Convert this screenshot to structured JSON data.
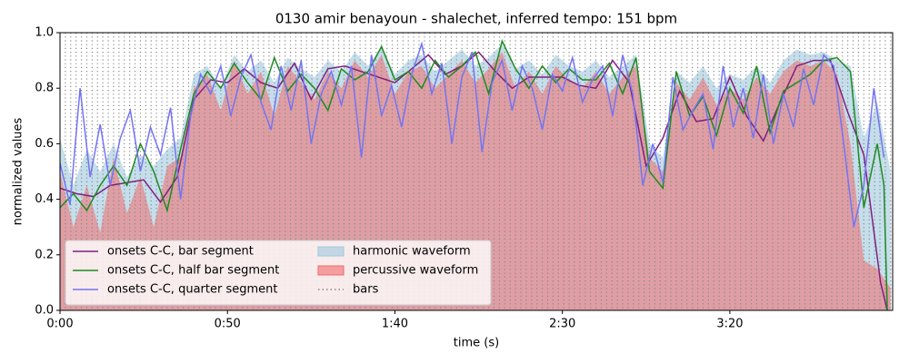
{
  "chart_data": {
    "type": "line",
    "title": "0130 amir benayoun - shalechet, inferred tempo: 151 bpm",
    "x_label": "time (s)",
    "y_label": "normalized values",
    "xlim": [
      0,
      248.6
    ],
    "ylim": [
      0,
      1
    ],
    "xticks": [
      {
        "value": 0,
        "label": "0:00"
      },
      {
        "value": 50,
        "label": "0:50"
      },
      {
        "value": 100,
        "label": "1:40"
      },
      {
        "value": 150,
        "label": "2:30"
      },
      {
        "value": 200,
        "label": "3:20"
      }
    ],
    "yticks": [
      {
        "value": 0,
        "label": "0.0"
      },
      {
        "value": 0.2,
        "label": "0.2"
      },
      {
        "value": 0.4,
        "label": "0.4"
      },
      {
        "value": 0.6,
        "label": "0.6"
      },
      {
        "value": 0.8,
        "label": "0.8"
      },
      {
        "value": 1,
        "label": "1.0"
      }
    ],
    "legend": "lower left",
    "series": [
      {
        "name": "onsets C-C, bar segment",
        "kind": "line",
        "color": "#7f1f7f",
        "x": [
          0,
          5,
          10,
          15,
          20,
          25,
          30,
          35,
          40,
          45,
          50,
          55,
          60,
          65,
          70,
          75,
          80,
          85,
          90,
          95,
          100,
          105,
          110,
          115,
          120,
          125,
          130,
          135,
          140,
          145,
          150,
          155,
          160,
          165,
          170,
          175,
          180,
          185,
          190,
          195,
          200,
          205,
          210,
          215,
          220,
          225,
          230,
          235,
          240,
          245,
          247
        ],
        "values": [
          0.44,
          0.42,
          0.41,
          0.45,
          0.46,
          0.47,
          0.39,
          0.48,
          0.76,
          0.83,
          0.82,
          0.87,
          0.82,
          0.8,
          0.89,
          0.76,
          0.87,
          0.88,
          0.86,
          0.84,
          0.82,
          0.87,
          0.92,
          0.85,
          0.88,
          0.93,
          0.86,
          0.8,
          0.84,
          0.84,
          0.84,
          0.81,
          0.8,
          0.9,
          0.82,
          0.52,
          0.62,
          0.79,
          0.68,
          0.69,
          0.84,
          0.7,
          0.61,
          0.75,
          0.88,
          0.9,
          0.9,
          0.72,
          0.56,
          0.1,
          0.0
        ]
      },
      {
        "name": "onsets C-C, half bar segment",
        "kind": "line",
        "color": "#1f8a1f",
        "x": [
          0,
          4,
          8,
          12,
          16,
          20,
          24,
          28,
          32,
          36,
          40,
          44,
          48,
          52,
          56,
          60,
          64,
          68,
          72,
          76,
          80,
          84,
          88,
          92,
          96,
          100,
          104,
          108,
          112,
          116,
          120,
          124,
          128,
          132,
          136,
          140,
          144,
          148,
          152,
          156,
          160,
          164,
          168,
          172,
          176,
          180,
          184,
          188,
          192,
          196,
          200,
          204,
          208,
          212,
          216,
          220,
          224,
          228,
          232,
          236,
          240,
          244,
          246,
          247
        ],
        "values": [
          0.37,
          0.42,
          0.36,
          0.45,
          0.52,
          0.45,
          0.6,
          0.5,
          0.36,
          0.58,
          0.78,
          0.86,
          0.8,
          0.89,
          0.82,
          0.76,
          0.91,
          0.79,
          0.85,
          0.8,
          0.72,
          0.87,
          0.83,
          0.86,
          0.95,
          0.83,
          0.86,
          0.8,
          0.9,
          0.84,
          0.88,
          0.93,
          0.78,
          0.97,
          0.87,
          0.8,
          0.88,
          0.82,
          0.87,
          0.83,
          0.83,
          0.89,
          0.78,
          0.91,
          0.5,
          0.44,
          0.86,
          0.7,
          0.77,
          0.63,
          0.8,
          0.71,
          0.88,
          0.64,
          0.79,
          0.82,
          0.85,
          0.9,
          0.91,
          0.86,
          0.37,
          0.6,
          0.45,
          0.0
        ]
      },
      {
        "name": "onsets C-C, quarter segment",
        "kind": "line",
        "color": "#7474f2",
        "x": [
          0,
          3,
          6,
          9,
          12,
          15,
          18,
          21,
          24,
          27,
          30,
          33,
          36,
          39,
          42,
          45,
          48,
          51,
          54,
          57,
          60,
          63,
          66,
          69,
          72,
          75,
          78,
          81,
          84,
          87,
          90,
          93,
          96,
          99,
          102,
          105,
          108,
          111,
          114,
          117,
          120,
          123,
          126,
          129,
          132,
          135,
          138,
          141,
          144,
          147,
          150,
          153,
          156,
          159,
          162,
          165,
          168,
          171,
          174,
          177,
          180,
          183,
          186,
          189,
          192,
          195,
          198,
          201,
          204,
          207,
          210,
          213,
          216,
          219,
          222,
          225,
          228,
          231,
          234,
          237,
          240,
          243,
          246
        ],
        "values": [
          0.53,
          0.38,
          0.8,
          0.48,
          0.67,
          0.45,
          0.62,
          0.72,
          0.5,
          0.66,
          0.56,
          0.73,
          0.4,
          0.7,
          0.85,
          0.78,
          0.88,
          0.7,
          0.84,
          0.92,
          0.75,
          0.65,
          0.88,
          0.72,
          0.9,
          0.6,
          0.78,
          0.86,
          0.74,
          0.88,
          0.55,
          0.92,
          0.7,
          0.81,
          0.66,
          0.85,
          0.96,
          0.78,
          0.89,
          0.6,
          0.84,
          0.93,
          0.57,
          0.82,
          0.9,
          0.72,
          0.88,
          0.8,
          0.65,
          0.85,
          0.79,
          0.91,
          0.75,
          0.83,
          0.88,
          0.7,
          0.92,
          0.78,
          0.45,
          0.6,
          0.46,
          0.84,
          0.65,
          0.72,
          0.78,
          0.58,
          0.88,
          0.66,
          0.8,
          0.62,
          0.85,
          0.6,
          0.78,
          0.66,
          0.87,
          0.74,
          0.92,
          0.88,
          0.6,
          0.3,
          0.45,
          0.8,
          0.55
        ]
      },
      {
        "name": "harmonic waveform",
        "kind": "area",
        "color": "#9ec8de",
        "x": [
          0,
          4,
          8,
          12,
          16,
          20,
          24,
          28,
          32,
          36,
          40,
          44,
          48,
          52,
          56,
          60,
          64,
          68,
          72,
          76,
          80,
          84,
          88,
          92,
          96,
          100,
          104,
          108,
          112,
          116,
          120,
          124,
          128,
          132,
          136,
          140,
          144,
          148,
          152,
          156,
          160,
          164,
          168,
          172,
          176,
          180,
          184,
          188,
          192,
          196,
          200,
          204,
          208,
          212,
          216,
          220,
          224,
          228,
          232,
          236,
          240,
          244,
          248
        ],
        "values": [
          0.62,
          0.45,
          0.58,
          0.5,
          0.6,
          0.48,
          0.56,
          0.52,
          0.58,
          0.62,
          0.85,
          0.88,
          0.8,
          0.92,
          0.86,
          0.9,
          0.82,
          0.91,
          0.87,
          0.84,
          0.9,
          0.86,
          0.93,
          0.88,
          0.95,
          0.85,
          0.9,
          0.92,
          0.86,
          0.9,
          0.94,
          0.88,
          0.91,
          0.96,
          0.87,
          0.9,
          0.85,
          0.92,
          0.88,
          0.86,
          0.9,
          0.84,
          0.88,
          0.92,
          0.6,
          0.55,
          0.86,
          0.82,
          0.88,
          0.8,
          0.85,
          0.83,
          0.88,
          0.82,
          0.9,
          0.94,
          0.92,
          0.93,
          0.9,
          0.88,
          0.62,
          0.75,
          0.5
        ]
      },
      {
        "name": "percussive waveform",
        "kind": "area",
        "color": "#f26a6a",
        "x": [
          0,
          4,
          8,
          12,
          16,
          20,
          24,
          28,
          32,
          36,
          40,
          44,
          48,
          52,
          56,
          60,
          64,
          68,
          72,
          76,
          80,
          84,
          88,
          92,
          96,
          100,
          104,
          108,
          112,
          116,
          120,
          124,
          128,
          132,
          136,
          140,
          144,
          148,
          152,
          156,
          160,
          164,
          168,
          172,
          176,
          180,
          184,
          188,
          192,
          196,
          200,
          204,
          208,
          212,
          216,
          220,
          224,
          228,
          232,
          236,
          240,
          244,
          248
        ],
        "values": [
          0.5,
          0.3,
          0.45,
          0.28,
          0.55,
          0.35,
          0.48,
          0.3,
          0.52,
          0.55,
          0.8,
          0.85,
          0.72,
          0.9,
          0.78,
          0.86,
          0.7,
          0.88,
          0.82,
          0.76,
          0.86,
          0.8,
          0.9,
          0.84,
          0.92,
          0.78,
          0.86,
          0.88,
          0.8,
          0.85,
          0.9,
          0.82,
          0.87,
          0.93,
          0.8,
          0.86,
          0.78,
          0.88,
          0.83,
          0.8,
          0.86,
          0.78,
          0.84,
          0.88,
          0.55,
          0.5,
          0.82,
          0.76,
          0.84,
          0.74,
          0.8,
          0.76,
          0.84,
          0.78,
          0.86,
          0.9,
          0.88,
          0.9,
          0.85,
          0.6,
          0.18,
          0.15,
          0.08
        ]
      },
      {
        "name": "bars",
        "kind": "vlines",
        "color": "#888888",
        "x": [
          0,
          1.6,
          3.2,
          4.8,
          6.4,
          8,
          9.6,
          11.2,
          12.8,
          14.4,
          16,
          17.6,
          19.2,
          20.8,
          22.4,
          24,
          25.6,
          27.2,
          28.8,
          30.4,
          32,
          33.6,
          35.2,
          36.8,
          38.4,
          40,
          41.6,
          43.2,
          44.8,
          46.4,
          48,
          49.6,
          51.2,
          52.8,
          54.4,
          56,
          57.6,
          59.2,
          60.8,
          62.4,
          64,
          65.6,
          67.2,
          68.8,
          70.4,
          72,
          73.6,
          75.2,
          76.8,
          78.4,
          80,
          81.6,
          83.2,
          84.8,
          86.4,
          88,
          89.6,
          91.2,
          92.8,
          94.4,
          96,
          97.6,
          99.2,
          100.8,
          102.4,
          104,
          105.6,
          107.2,
          108.8,
          110.4,
          112,
          113.6,
          115.2,
          116.8,
          118.4,
          120,
          121.6,
          123.2,
          124.8,
          126.4,
          128,
          129.6,
          131.2,
          132.8,
          134.4,
          136,
          137.6,
          139.2,
          140.8,
          142.4,
          144,
          145.6,
          147.2,
          148.8,
          150.4,
          152,
          153.6,
          155.2,
          156.8,
          158.4,
          160,
          161.6,
          163.2,
          164.8,
          166.4,
          168,
          169.6,
          171.2,
          172.8,
          174.4,
          176,
          177.6,
          179.2,
          180.8,
          182.4,
          184,
          185.6,
          187.2,
          188.8,
          190.4,
          192,
          193.6,
          195.2,
          196.8,
          198.4,
          200,
          201.6,
          203.2,
          204.8,
          206.4,
          208,
          209.6,
          211.2,
          212.8,
          214.4,
          216,
          217.6,
          219.2,
          220.8,
          222.4,
          224,
          225.6,
          227.2,
          228.8,
          230.4,
          232,
          233.6,
          235.2,
          236.8,
          238.4,
          240,
          241.6,
          243.2,
          244.8,
          246.4,
          248
        ]
      }
    ]
  }
}
